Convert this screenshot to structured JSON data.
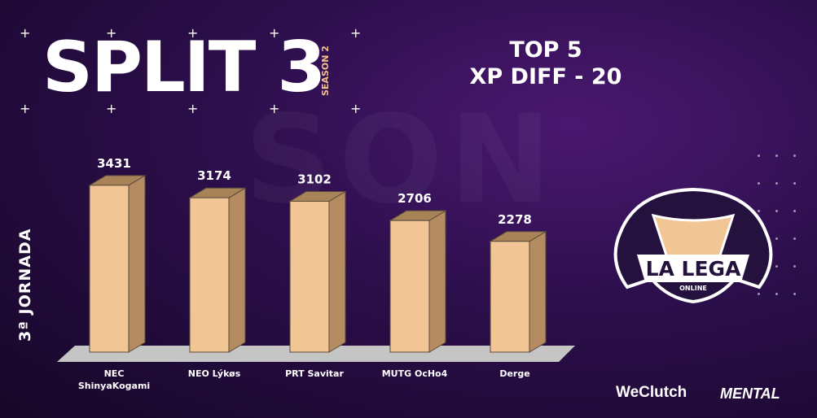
{
  "header": {
    "split_title": "SPLIT 3",
    "season": "SEASON 2",
    "top_line1": "TOP 5",
    "top_line2": "XP DIFF - 20",
    "jornada": "3ª JORNADA"
  },
  "logo": {
    "name": "LA LEGA",
    "sub": "ONLINE",
    "icon": "la-lega-online-logo"
  },
  "sponsors": {
    "brand1": "WeClutch",
    "brand2": "MENTAL"
  },
  "colors": {
    "bar_front": "#f2c595",
    "bar_side": "#b58c61",
    "bar_top": "#a88358",
    "floor": "#c5c5c5",
    "season_accent": "#f2c08e"
  },
  "chart_data": {
    "type": "bar",
    "categories": [
      "NEC\nShinyaKogami",
      "NEO Lýkøs",
      "PRT Savitar",
      "MUTG OcHo4",
      "Derge"
    ],
    "values": [
      3431,
      3174,
      3102,
      2706,
      2278
    ],
    "title": "",
    "xlabel": "",
    "ylabel": "",
    "ylim": [
      0,
      3600
    ]
  }
}
